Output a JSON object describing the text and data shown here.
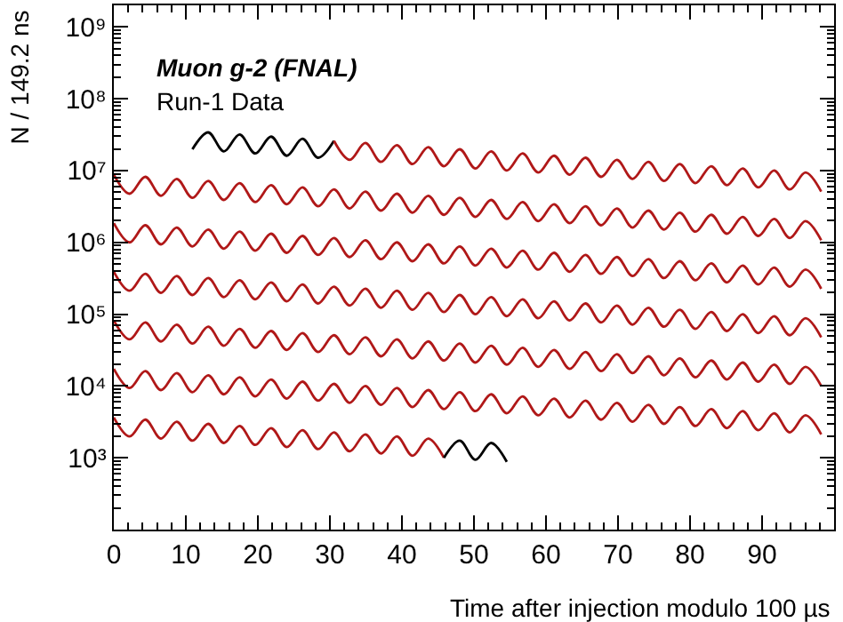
{
  "chart_data": {
    "type": "line",
    "xlabel": "Time after injection modulo 100 µs",
    "ylabel": "N / 149.2 ns",
    "annotations": [
      "Muon g-2 (FNAL)",
      "Run-1 Data"
    ],
    "log": "y",
    "marker": "none",
    "line_style": "solid",
    "xlim": [
      0,
      100
    ],
    "xticks": [
      0,
      10,
      20,
      30,
      40,
      50,
      60,
      70,
      80,
      90
    ],
    "ylim": [
      100,
      2000000000
    ],
    "yticks": [
      {
        "value": 1000,
        "label": "10³"
      },
      {
        "value": 10000,
        "label": "10⁴"
      },
      {
        "value": 100000,
        "label": "10⁵"
      },
      {
        "value": 1000000,
        "label": "10⁶"
      },
      {
        "value": 10000000,
        "label": "10⁷"
      },
      {
        "value": 100000000,
        "label": "10⁸"
      },
      {
        "value": 1000000000,
        "label": "10⁹"
      }
    ],
    "x": [
      0,
      2.18,
      4.37,
      6.55,
      8.73,
      10.91,
      13.1,
      15.28,
      17.46,
      19.64,
      21.83,
      24.01,
      26.19,
      28.37,
      30.56,
      32.74,
      34.92,
      37.1,
      39.29,
      41.47,
      43.65,
      45.83,
      48.02,
      50.2,
      52.38,
      54.56,
      56.75,
      58.93,
      61.11,
      63.29,
      65.48,
      67.66,
      69.84,
      72.02,
      74.21,
      76.39,
      78.57,
      80.75,
      82.94,
      85.12,
      87.3,
      89.48,
      91.67,
      93.85,
      96.03,
      98.21
    ],
    "series": [
      {
        "color": "#000000",
        "x": [
          10.91,
          13.1,
          15.28,
          17.46,
          19.64,
          21.83,
          24.01,
          26.19,
          28.37,
          30.56
        ],
        "values": [
          19800000.0,
          34000000.0,
          18500000.0,
          31800000.0,
          17300000.0,
          29700000.0,
          16100000.0,
          27700000.0,
          15100000.0,
          25900000.0
        ]
      },
      {
        "color": "#b01818",
        "x": [
          30.56,
          32.74,
          34.92,
          37.1,
          39.29,
          41.47,
          43.65,
          45.83,
          48.02,
          50.2,
          52.38,
          54.56,
          56.75,
          58.93,
          61.11,
          63.29,
          65.48,
          67.66,
          69.84,
          72.02,
          74.21,
          76.39,
          78.57,
          80.75,
          82.94,
          85.12,
          87.3,
          89.48,
          91.67,
          93.85,
          96.03,
          98.21
        ],
        "values": [
          25900000.0,
          14100000.0,
          24200000.0,
          13200000.0,
          22600000.0,
          12300000.0,
          21200000.0,
          11500000.0,
          19800000.0,
          10700000.0,
          18500000.0,
          10000000.0,
          17300000.0,
          9380000.0,
          16100000.0,
          8770000.0,
          15100000.0,
          8180000.0,
          14100000.0,
          7660000.0,
          13200000.0,
          7160000.0,
          12300000.0,
          6680000.0,
          11500000.0,
          6250000.0,
          10700000.0,
          5830000.0,
          10000000.0,
          5460000.0,
          9380000.0,
          5090000.0
        ]
      },
      {
        "color": "#b01818",
        "values": [
          8770000.0,
          4760000.0,
          8180000.0,
          4460000.0,
          7660000.0,
          4170000.0,
          7160000.0,
          3900000.0,
          6680000.0,
          3640000.0,
          6250000.0,
          3400000.0,
          5830000.0,
          3180000.0,
          5460000.0,
          2970000.0,
          5090000.0,
          2770000.0,
          4760000.0,
          2590000.0,
          4460000.0,
          2420000.0,
          4170000.0,
          2260000.0,
          3900000.0,
          2120000.0,
          3640000.0,
          1980000.0,
          3400000.0,
          1850000.0,
          3180000.0,
          1730000.0,
          2970000.0,
          1610000.0,
          2770000.0,
          1510000.0,
          2590000.0,
          1410000.0,
          2420000.0,
          1320000.0,
          2260000.0,
          1230000.0,
          2120000.0,
          1150000.0,
          1980000.0,
          1070000.0
        ]
      },
      {
        "color": "#b01818",
        "values": [
          1850000.0,
          1000000.0,
          1730000.0,
          938000.0,
          1610000.0,
          877000.0,
          1510000.0,
          818000.0,
          1410000.0,
          766000.0,
          1320000.0,
          716000.0,
          1230000.0,
          668000.0,
          1150000.0,
          625000.0,
          1070000.0,
          583000.0,
          1000000.0,
          546000.0,
          938000.0,
          509000.0,
          877000.0,
          476000.0,
          818000.0,
          446000.0,
          766000.0,
          417000.0,
          716000.0,
          390000.0,
          668000.0,
          364000.0,
          625000.0,
          340000.0,
          583000.0,
          318000.0,
          546000.0,
          297000.0,
          509000.0,
          277000.0,
          476000.0,
          259000.0,
          446000.0,
          242000.0,
          417000.0,
          226000.0
        ]
      },
      {
        "color": "#b01818",
        "values": [
          390000.0,
          212000.0,
          364000.0,
          198000.0,
          340000.0,
          185000.0,
          318000.0,
          173000.0,
          297000.0,
          161000.0,
          277000.0,
          151000.0,
          259000.0,
          141000.0,
          242000.0,
          132000.0,
          226000.0,
          123000.0,
          212000.0,
          115000.0,
          198000.0,
          107000.0,
          185000.0,
          100000.0,
          173000.0,
          93800.0,
          161000.0,
          87700.0,
          151000.0,
          81800.0,
          141000.0,
          76600.0,
          132000.0,
          71600.0,
          123000.0,
          66800.0,
          115000.0,
          62500.0,
          107000.0,
          58300.0,
          100000.0,
          54600.0,
          93800.0,
          50900.0,
          87700.0,
          47600.0
        ]
      },
      {
        "color": "#b01818",
        "values": [
          81800.0,
          44600.0,
          76600.0,
          41700.0,
          71600.0,
          39000.0,
          66800.0,
          36400.0,
          62500.0,
          34000.0,
          58300.0,
          31800.0,
          54600.0,
          29700.0,
          50900.0,
          27700.0,
          47600.0,
          25900.0,
          44600.0,
          24200.0,
          41700.0,
          22600.0,
          39000.0,
          21200.0,
          36400.0,
          19800.0,
          34000.0,
          18500.0,
          31800.0,
          17300.0,
          29700.0,
          16100.0,
          27700.0,
          15100.0,
          25900.0,
          14100.0,
          24200.0,
          13200.0,
          22600.0,
          12300.0,
          21200.0,
          11500.0,
          19800.0,
          10700.0,
          18500.0,
          10000.0
        ]
      },
      {
        "color": "#b01818",
        "values": [
          17300.0,
          9380.0,
          16100.0,
          8770.0,
          15100.0,
          8180.0,
          14100.0,
          7660.0,
          13200.0,
          7160.0,
          12300.0,
          6680.0,
          11500.0,
          6250.0,
          10700.0,
          5830.0,
          10000.0,
          5460.0,
          9380.0,
          5090.0,
          8770.0,
          4760.0,
          8180.0,
          4460.0,
          7660.0,
          4170.0,
          7160.0,
          3900.0,
          6680.0,
          3640.0,
          6250.0,
          3400.0,
          5830.0,
          3180.0,
          5460.0,
          2970.0,
          5090.0,
          2770.0,
          4760.0,
          2590.0,
          4460.0,
          2420.0,
          4170.0,
          2260.0,
          3900.0,
          2120.0
        ]
      },
      {
        "color": "#b01818",
        "x": [
          0,
          2.18,
          4.37,
          6.55,
          8.73,
          10.91,
          13.1,
          15.28,
          17.46,
          19.64,
          21.83,
          24.01,
          26.19,
          28.37,
          30.56,
          32.74,
          34.92,
          37.1,
          39.29,
          41.47,
          43.65,
          45.83
        ],
        "values": [
          3640.0,
          1980.0,
          3400.0,
          1850.0,
          3180.0,
          1730.0,
          2970.0,
          1610.0,
          2770.0,
          1510.0,
          2590.0,
          1410.0,
          2420.0,
          1320.0,
          2260.0,
          1230.0,
          2120.0,
          1150.0,
          1980.0,
          1070.0,
          1850.0,
          1000.0
        ]
      },
      {
        "color": "#000000",
        "x": [
          45.83,
          48.02,
          50.2,
          52.38,
          54.56
        ],
        "values": [
          1000.0,
          1730.0,
          938.0,
          1610.0,
          877.0
        ]
      }
    ]
  }
}
